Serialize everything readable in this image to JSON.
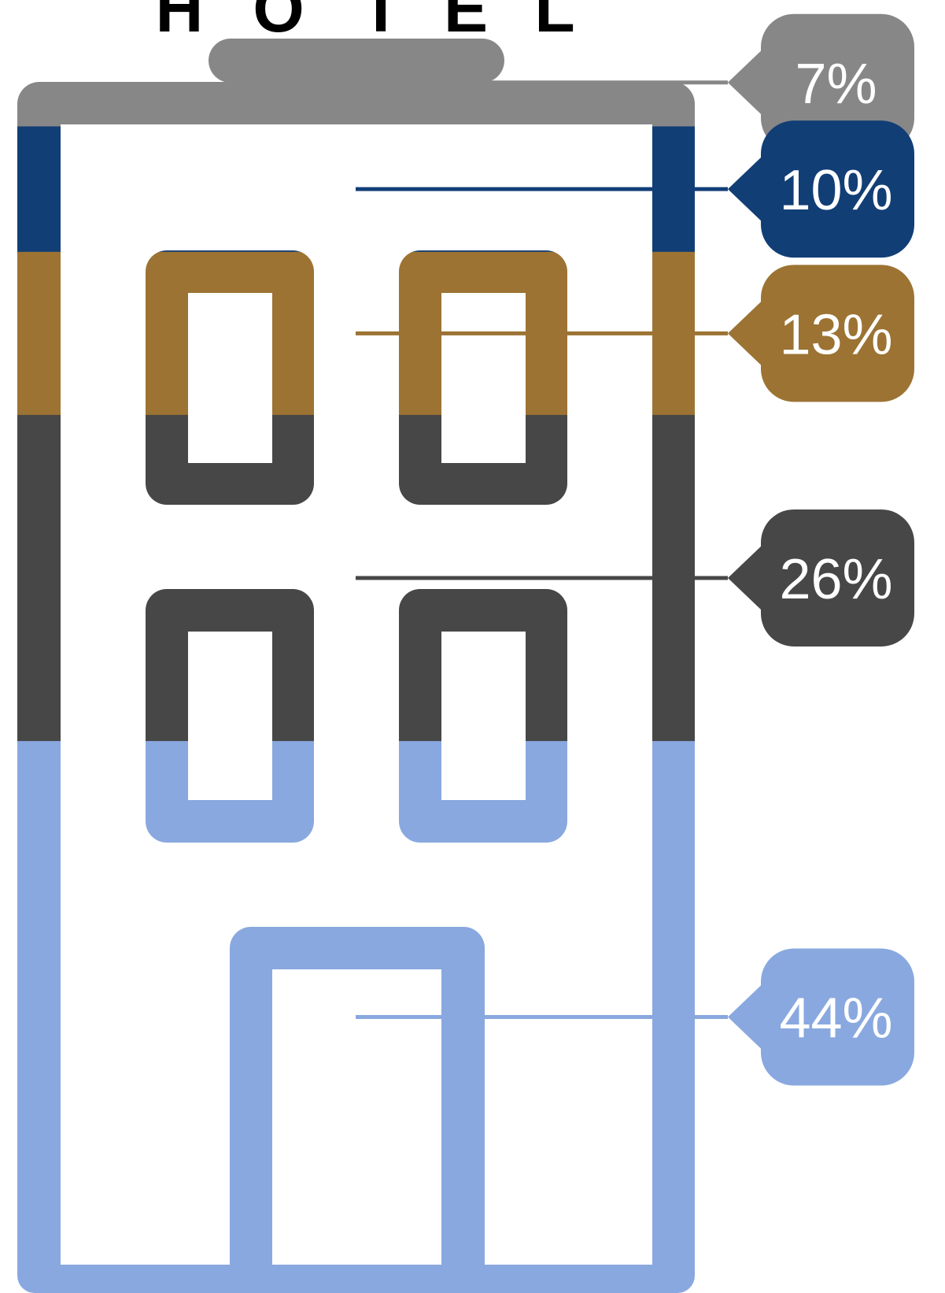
{
  "sign": {
    "letters": [
      "H",
      "O",
      "T",
      "E",
      "L"
    ]
  },
  "chart_data": {
    "type": "pictorial-stacked",
    "icon": "hotel-building-icon",
    "unit": "%",
    "order": "top-to-bottom",
    "segments": [
      {
        "value": 7,
        "label": "7%",
        "color": "#878787"
      },
      {
        "value": 10,
        "label": "10%",
        "color": "#123e76"
      },
      {
        "value": 13,
        "label": "13%",
        "color": "#9c7333"
      },
      {
        "value": 26,
        "label": "26%",
        "color": "#474747"
      },
      {
        "value": 44,
        "label": "44%",
        "color": "#89a8df"
      }
    ]
  }
}
